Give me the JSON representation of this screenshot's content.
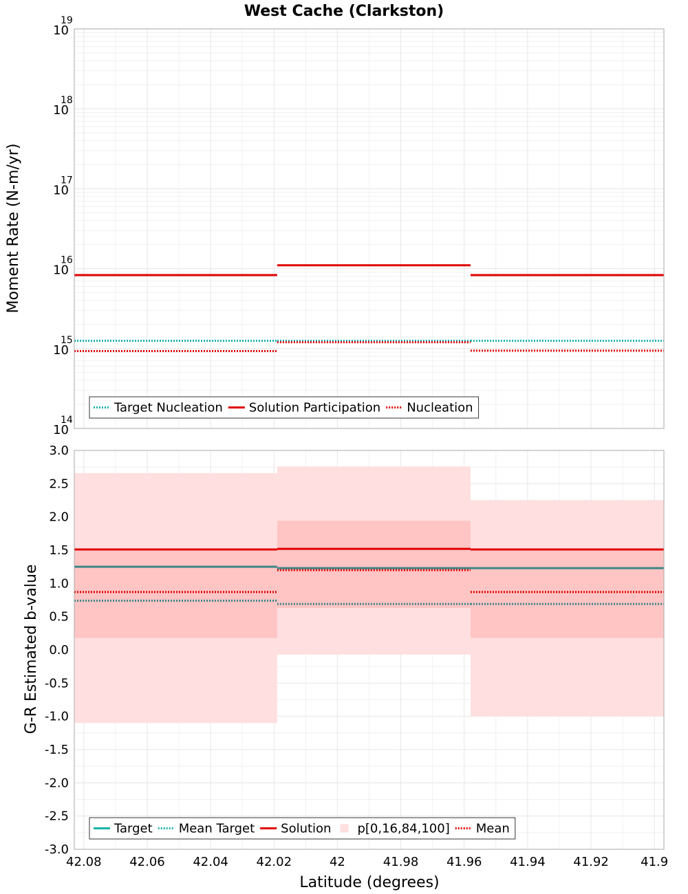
{
  "chart_data": {
    "title": "West Cache (Clarkston)",
    "xlabel": "Latitude (degrees)",
    "xlim": [
      42.083,
      41.897
    ],
    "x_ticks": [
      "42.08",
      "42.06",
      "42.04",
      "42.02",
      "42",
      "41.98",
      "41.96",
      "41.94",
      "41.92",
      "41.9"
    ],
    "x_tick_values": [
      42.08,
      42.06,
      42.04,
      42.02,
      42.0,
      41.98,
      41.96,
      41.94,
      41.92,
      41.9
    ],
    "segments": [
      {
        "x_start": 42.083,
        "x_end": 42.019
      },
      {
        "x_start": 42.019,
        "x_end": 41.958
      },
      {
        "x_start": 41.958,
        "x_end": 41.897
      }
    ],
    "charts": [
      {
        "type": "line",
        "scale": "log",
        "ylabel": "Moment Rate (N-m/yr)",
        "ylim": [
          100000000000000.0,
          1e+19
        ],
        "y_ticks": [
          {
            "value": 1e+19,
            "base": "10",
            "exp": "19"
          },
          {
            "value": 1e+18,
            "base": "10",
            "exp": "18"
          },
          {
            "value": 1e+17,
            "base": "10",
            "exp": "17"
          },
          {
            "value": 1e+16,
            "base": "10",
            "exp": "16"
          },
          {
            "value": 1000000000000000.0,
            "base": "10",
            "exp": "15"
          },
          {
            "value": 100000000000000.0,
            "base": "10",
            "exp": "14"
          }
        ],
        "grid": true,
        "legend": {
          "position": "bottom-left",
          "entries": [
            "Target Nucleation",
            "Solution Participation",
            "Nucleation"
          ]
        },
        "series": [
          {
            "name": "Target Nucleation",
            "style": "dotted",
            "color": "#17b3b3",
            "values": [
              1250000000000000.0,
              1250000000000000.0,
              1250000000000000.0
            ]
          },
          {
            "name": "Solution Participation",
            "style": "solid",
            "color": "#e00000",
            "values": [
              8300000000000000.0,
              1.1e+16,
              8300000000000000.0
            ]
          },
          {
            "name": "Nucleation",
            "style": "dotted",
            "color": "#e00000",
            "values": [
              930000000000000.0,
              1200000000000000.0,
              940000000000000.0
            ]
          }
        ]
      },
      {
        "type": "line",
        "scale": "linear",
        "ylabel": "G-R Estimated b-value",
        "ylim": [
          -3.0,
          3.0
        ],
        "y_ticks": [
          "3.0",
          "2.5",
          "2.0",
          "1.5",
          "1.0",
          "0.5",
          "0.0",
          "-0.5",
          "-1.0",
          "-1.5",
          "-2.0",
          "-2.5",
          "-3.0"
        ],
        "y_tick_values": [
          3.0,
          2.5,
          2.0,
          1.5,
          1.0,
          0.5,
          0.0,
          -0.5,
          -1.0,
          -1.5,
          -2.0,
          -2.5,
          -3.0
        ],
        "grid": true,
        "legend": {
          "position": "bottom-left",
          "entries": [
            "Target",
            "Mean Target",
            "Solution",
            "p[0,16,84,100]",
            "Mean"
          ]
        },
        "bands": {
          "name": "p[0,16,84,100]",
          "outer_color": "#ffdfdf",
          "inner_color": "#ffc4c4",
          "p0": [
            -1.1,
            -0.07,
            -1.0
          ],
          "p16": [
            0.18,
            0.63,
            0.18
          ],
          "p84": [
            1.5,
            1.94,
            1.5
          ],
          "p100": [
            2.66,
            2.76,
            2.25
          ]
        },
        "series": [
          {
            "name": "Target",
            "style": "solid",
            "color": "#3b8686",
            "values": [
              1.25,
              1.23,
              1.23
            ]
          },
          {
            "name": "Mean Target",
            "style": "dotted",
            "color": "#3b8686",
            "values": [
              0.74,
              0.69,
              0.69
            ]
          },
          {
            "name": "Solution",
            "style": "solid",
            "color": "#e00000",
            "values": [
              1.51,
              1.52,
              1.51
            ]
          },
          {
            "name": "Mean",
            "style": "dotted",
            "color": "#e00000",
            "values": [
              0.87,
              1.2,
              0.87
            ]
          }
        ]
      }
    ]
  }
}
